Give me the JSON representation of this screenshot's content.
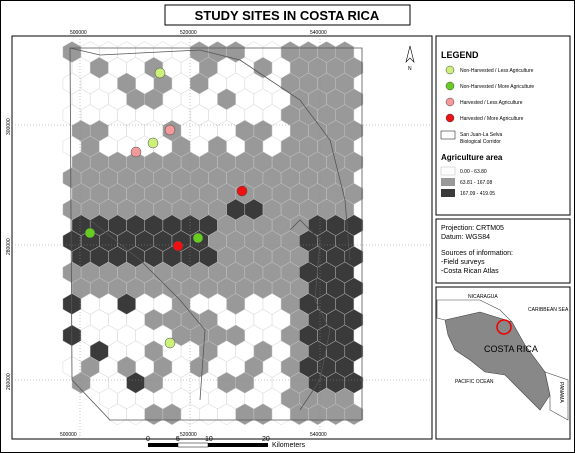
{
  "title": "STUDY SITES IN COSTA RICA",
  "map": {
    "top_coords": [
      "500000",
      "520000",
      "540000"
    ],
    "bottom_coords": [
      "500000",
      "520000",
      "540000"
    ],
    "left_coords": [
      "300000",
      "280000",
      "260000"
    ],
    "north": "N"
  },
  "legend": {
    "title": "LEGEND",
    "sites": [
      "Non-Harvested / Less Agriculture",
      "Non-Harvested / More Agriculture",
      "Harvested / Less Agriculture",
      "Harvested / More Agriculture"
    ],
    "corridor": [
      "San Juan-La Selva",
      "Biological Corridor"
    ],
    "agriculture_title": "Agriculture area",
    "classes": [
      "0.00 - 63.80",
      "63.81 - 167.08",
      "167.09 - 419.05"
    ]
  },
  "info": [
    "Projection: CRTM05",
    "Datum: WGS84",
    "Sources of information:",
    "-Field surveys",
    "-Costa Rican Atlas"
  ],
  "inset": {
    "nicaragua": "NICARAGUA",
    "caribbean": "CARIBBEAN SEA",
    "country": "COSTA RICA",
    "pacific": "PACIFIC OCEAN",
    "panama": "PANAMA"
  },
  "scale": {
    "ticks": [
      "0",
      "5",
      "10",
      "20"
    ],
    "unit": "Kilometers"
  }
}
